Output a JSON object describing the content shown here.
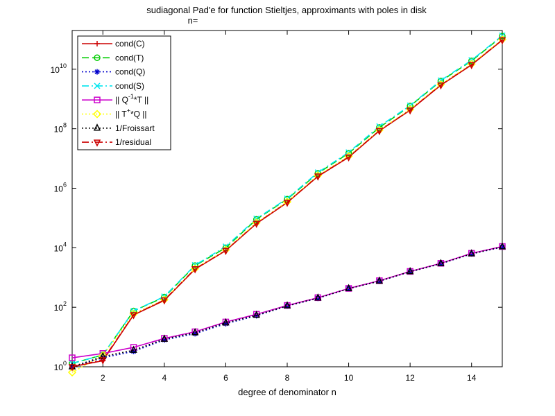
{
  "chart_data": {
    "type": "line",
    "title": "sudiagonal Pad'e for function Stieltjes, approximants with poles in disk",
    "subtitle": "n=",
    "xlabel": "degree of denominator n",
    "ylabel": "",
    "xlim": [
      1,
      15
    ],
    "ylim": [
      1,
      200000000000
    ],
    "yscale": "log",
    "grid": false,
    "legend_position": "top-left",
    "x_ticks": [
      2,
      4,
      6,
      8,
      10,
      12,
      14
    ],
    "y_ticks": [
      {
        "value": 1,
        "base": "10",
        "exp": "0"
      },
      {
        "value": 100,
        "base": "10",
        "exp": "2"
      },
      {
        "value": 10000,
        "base": "10",
        "exp": "4"
      },
      {
        "value": 1000000,
        "base": "10",
        "exp": "6"
      },
      {
        "value": 100000000,
        "base": "10",
        "exp": "8"
      },
      {
        "value": 10000000000,
        "base": "10",
        "exp": "10"
      }
    ],
    "x": [
      1,
      2,
      3,
      4,
      5,
      6,
      7,
      8,
      9,
      10,
      11,
      12,
      13,
      14,
      15
    ],
    "series": [
      {
        "name": "cond(C)",
        "color": "#cc0000",
        "dash": "",
        "marker": "plus",
        "values": [
          1.0,
          1.6,
          55,
          170,
          1900,
          8000,
          65000,
          330000,
          2500000,
          11000000,
          85000000,
          420000000,
          2900000000,
          14000000000,
          95000000000
        ]
      },
      {
        "name": "cond(T)",
        "color": "#00cc00",
        "dash": "10,5",
        "marker": "circle",
        "values": [
          1.3,
          2.5,
          75,
          220,
          2500,
          10000,
          90000,
          430000,
          3200000,
          15000000,
          110000000,
          580000000,
          4000000000,
          19000000000,
          130000000000
        ]
      },
      {
        "name": "cond(Q)",
        "color": "#0000cc",
        "dash": "2,3",
        "marker": "star",
        "values": [
          1.0,
          2.0,
          3.3,
          8.0,
          13,
          28,
          52,
          110,
          200,
          420,
          750,
          1550,
          2900,
          6200,
          10500
        ]
      },
      {
        "name": "cond(S)",
        "color": "#00e5ee",
        "dash": "10,4,2,4",
        "marker": "x",
        "values": [
          1.3,
          2.5,
          75,
          230,
          2600,
          11000,
          95000,
          450000,
          3400000,
          16000000,
          120000000,
          600000000,
          4200000000,
          20000000000,
          135000000000
        ]
      },
      {
        "name": "|| Q^-1*T ||",
        "label_parts": [
          "|| Q",
          "-1",
          "*T ||"
        ],
        "color": "#cc00cc",
        "dash": "",
        "marker": "square",
        "values": [
          2.0,
          2.8,
          4.5,
          9.0,
          15,
          32,
          58,
          115,
          210,
          430,
          780,
          1600,
          3000,
          6500,
          11000
        ]
      },
      {
        "name": "|| T^+*Q ||",
        "label_parts": [
          "|| T",
          "+",
          "*Q ||"
        ],
        "color": "#ffff00",
        "dash": "2,3",
        "marker": "diamond",
        "values": [
          0.65,
          2.4,
          60,
          180,
          2000,
          8500,
          70000,
          350000,
          2700000,
          12000000,
          90000000,
          450000000,
          3100000000,
          15000000000,
          100000000000
        ]
      },
      {
        "name": "1/Froissart",
        "color": "#000000",
        "dash": "2,3",
        "marker": "triangle-up",
        "values": [
          1.0,
          2.2,
          3.6,
          8.5,
          14,
          30,
          54,
          112,
          205,
          425,
          760,
          1580,
          2950,
          6300,
          10800
        ]
      },
      {
        "name": "1/residual",
        "color": "#cc0000",
        "dash": "10,4,2,4",
        "marker": "triangle-down",
        "values": [
          1.0,
          1.7,
          56,
          175,
          1950,
          8100,
          66000,
          335000,
          2550000,
          11200000,
          86000000,
          425000000,
          2950000000,
          14200000000,
          96000000000
        ]
      }
    ]
  }
}
